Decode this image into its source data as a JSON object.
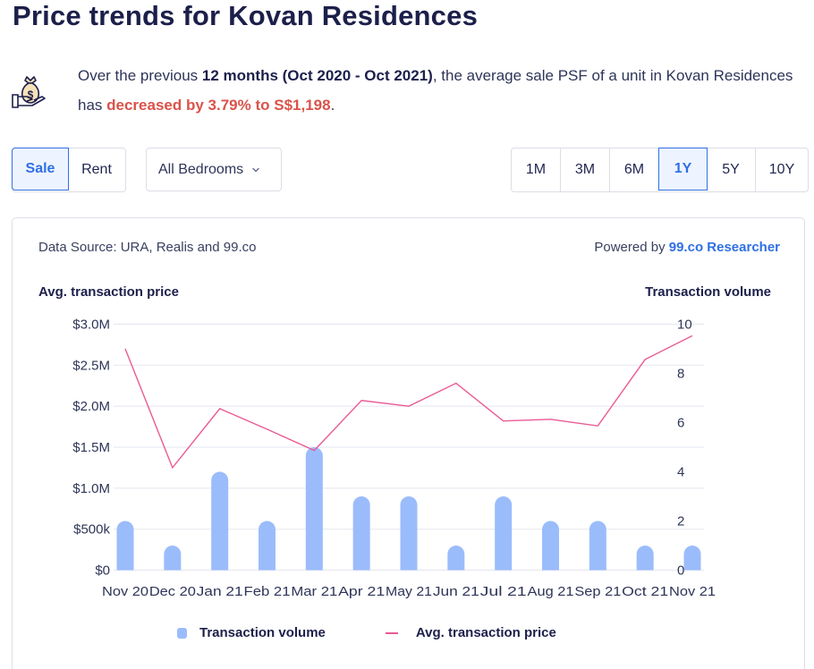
{
  "title": "Price trends for Kovan Residences",
  "summary": {
    "icon": "money-bag-hand-icon",
    "part1": "Over the previous ",
    "period": "12 months (Oct 2020 - Oct 2021)",
    "part2": ", the average sale PSF of a unit in Kovan Residences has ",
    "change": "decreased by 3.79% to S$1,198",
    "part3": "."
  },
  "controls": {
    "sale_label": "Sale",
    "rent_label": "Rent",
    "bedrooms_label": "All Bedrooms",
    "ranges": [
      "1M",
      "3M",
      "6M",
      "1Y",
      "5Y",
      "10Y"
    ],
    "active_range": "1Y"
  },
  "card": {
    "data_source": "Data Source: URA, Realis and 99.co",
    "powered_prefix": "Powered by ",
    "powered_link": "99.co Researcher"
  },
  "colors": {
    "bar": "#9bbcfb",
    "line": "#ea5a94",
    "accent": "#2f6fe4",
    "negative": "#d9534a"
  },
  "chart_data": {
    "type": "bar+line",
    "categories": [
      "Nov 20",
      "Dec 20",
      "Jan 21",
      "Feb 21",
      "Mar 21",
      "Apr 21",
      "May 21",
      "Jun 21",
      "Jul 21",
      "Aug 21",
      "Sep 21",
      "Oct 21",
      "Nov 21"
    ],
    "series": [
      {
        "name": "Transaction volume",
        "type": "bar",
        "axis": "right",
        "values": [
          2,
          1,
          4,
          2,
          5,
          3,
          3,
          1,
          3,
          2,
          2,
          1,
          1
        ]
      },
      {
        "name": "Avg. transaction price",
        "type": "line",
        "axis": "left",
        "values": [
          2700000,
          1250000,
          1970000,
          1720000,
          1460000,
          2070000,
          2000000,
          2280000,
          1820000,
          1840000,
          1760000,
          2570000,
          2860000
        ]
      }
    ],
    "ylabel_left": "Avg. transaction price",
    "ylabel_right": "Transaction volume",
    "ylim_left": [
      0,
      3000000
    ],
    "ylim_right": [
      0,
      10
    ],
    "yticks_left": [
      "$0",
      "$500k",
      "$1.0M",
      "$1.5M",
      "$2.0M",
      "$2.5M",
      "$3.0M"
    ],
    "yticks_right": [
      "0",
      "2",
      "4",
      "6",
      "8",
      "10"
    ],
    "grid": true,
    "legend": [
      "Transaction volume",
      "Avg. transaction price"
    ],
    "legend_position": "bottom"
  }
}
